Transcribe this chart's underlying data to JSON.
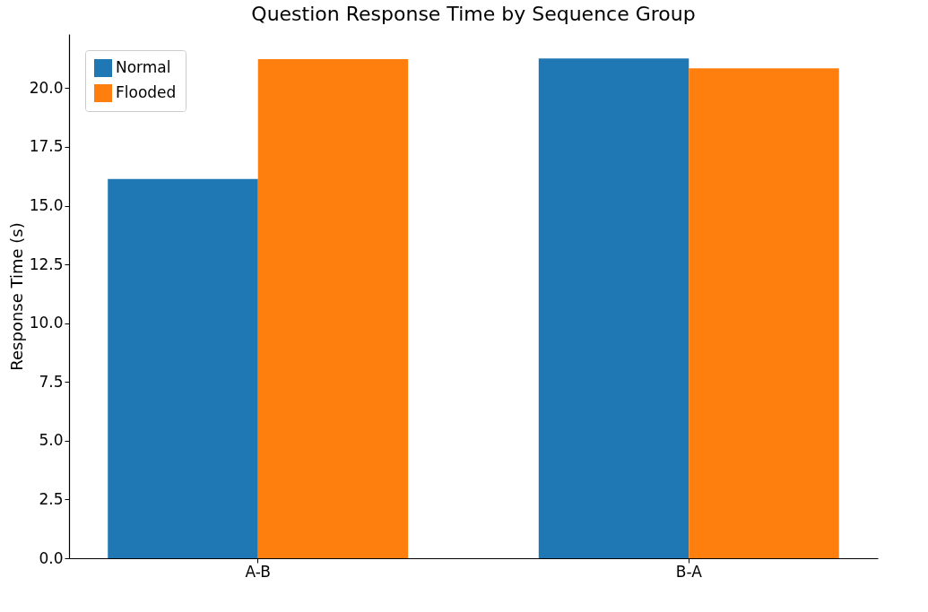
{
  "chart_data": {
    "type": "bar",
    "title": "Question Response Time by Sequence Group",
    "ylabel": "Response Time (s)",
    "categories": [
      "A-B",
      "B-A"
    ],
    "series": [
      {
        "name": "Normal",
        "color": "#1f77b4",
        "values": [
          16.13,
          21.26
        ]
      },
      {
        "name": "Flooded",
        "color": "#ff7f0e",
        "values": [
          21.23,
          20.84
        ]
      }
    ],
    "ylim": [
      0,
      22.3
    ],
    "yticks": [
      {
        "value": 0,
        "label": "0.0"
      },
      {
        "value": 2.5,
        "label": "2.5"
      },
      {
        "value": 5,
        "label": "5.0"
      },
      {
        "value": 7.5,
        "label": "7.5"
      },
      {
        "value": 10,
        "label": "10.0"
      },
      {
        "value": 12.5,
        "label": "12.5"
      },
      {
        "value": 15,
        "label": "15.0"
      },
      {
        "value": 17.5,
        "label": "17.5"
      },
      {
        "value": 20,
        "label": "20.0"
      }
    ],
    "grid": false,
    "legend": "top left"
  }
}
